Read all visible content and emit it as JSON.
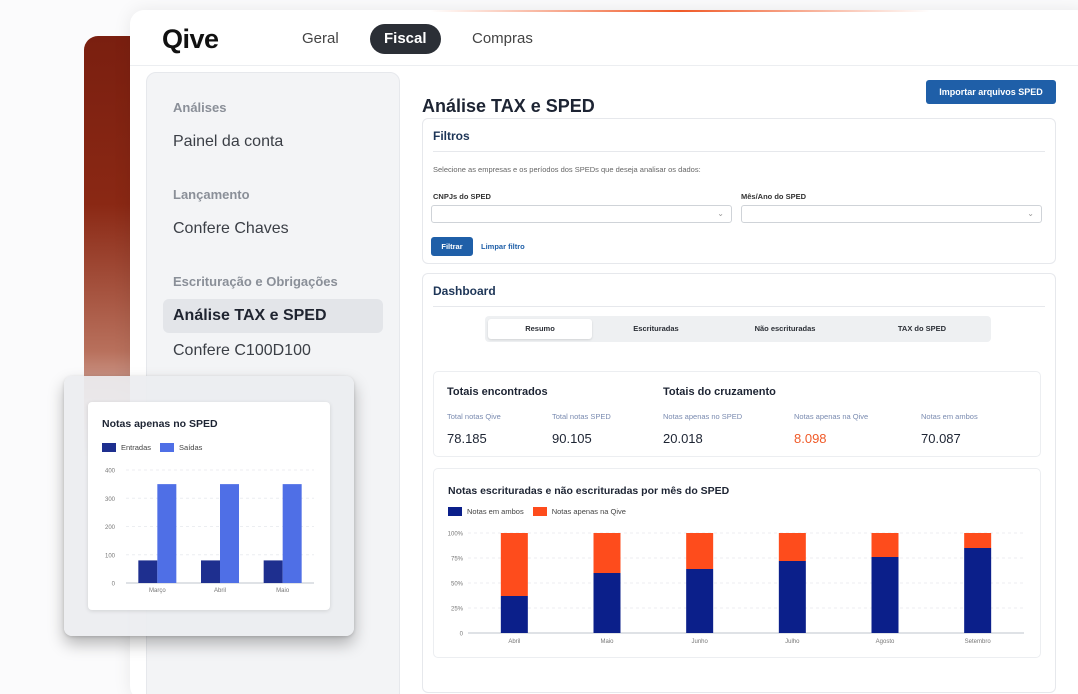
{
  "header": {
    "logo": "Qive",
    "tabs": [
      {
        "label": "Geral",
        "active": false
      },
      {
        "label": "Fiscal",
        "active": true
      },
      {
        "label": "Compras",
        "active": false
      }
    ]
  },
  "sidebar": {
    "sections": [
      {
        "title": "Análises",
        "items": [
          "Painel da conta"
        ]
      },
      {
        "title": "Lançamento",
        "items": [
          "Confere Chaves"
        ]
      },
      {
        "title": "Escrituração e Obrigações",
        "items": [
          "Análise TAX e SPED",
          "Confere C100D100"
        ]
      }
    ],
    "active_item": "Análise TAX e SPED"
  },
  "main": {
    "title": "Análise TAX e SPED",
    "import_button": "Importar arquivos SPED",
    "filters": {
      "title": "Filtros",
      "hint": "Selecione as empresas e os períodos dos SPEDs que deseja analisar os dados:",
      "cnpj_label": "CNPJs do SPED",
      "cnpj_value": "",
      "period_label": "Mês/Ano do SPED",
      "period_value": "",
      "filter_button": "Filtrar",
      "clear_button": "Limpar filtro"
    },
    "dashboard": {
      "title": "Dashboard",
      "tabs": [
        {
          "label": "Resumo",
          "active": true
        },
        {
          "label": "Escrituradas",
          "active": false
        },
        {
          "label": "Não escrituradas",
          "active": false
        },
        {
          "label": "TAX do SPED",
          "active": false
        }
      ],
      "totals": {
        "found_title": "Totais encontrados",
        "cross_title": "Totais do cruzamento",
        "metrics": [
          {
            "label": "Total notas Qive",
            "value": "78.185"
          },
          {
            "label": "Total notas SPED",
            "value": "90.105"
          },
          {
            "label": "Notas apenas no SPED",
            "value": "20.018"
          },
          {
            "label": "Notas apenas na Qive",
            "value": "8.098"
          },
          {
            "label": "Notas em ambos",
            "value": "70.087"
          }
        ],
        "warn_color": "#f05a28"
      }
    }
  },
  "chart_data": [
    {
      "type": "bar",
      "stacked": true,
      "title": "Notas escrituradas e não escrituradas por mês do SPED",
      "categories": [
        "Abril",
        "Maio",
        "Junho",
        "Julho",
        "Agosto",
        "Setembro"
      ],
      "series": [
        {
          "name": "Notas em ambos",
          "color": "#0b1f8a",
          "values": [
            37,
            60,
            64,
            72,
            76,
            85
          ]
        },
        {
          "name": "Notas apenas na Qive",
          "color": "#fe4c1c",
          "values": [
            63,
            40,
            36,
            28,
            24,
            15
          ]
        }
      ],
      "ylim": [
        0,
        100
      ],
      "yticks": [
        "0",
        "25%",
        "50%",
        "75%",
        "100%"
      ],
      "grid": true,
      "legend": "top-left"
    },
    {
      "type": "bar",
      "title": "Notas apenas no SPED",
      "categories": [
        "Março",
        "Abril",
        "Maio"
      ],
      "series": [
        {
          "name": "Entradas",
          "color": "#1e2f8f",
          "values": [
            80,
            80,
            80
          ]
        },
        {
          "name": "Saídas",
          "color": "#4f6fe6",
          "values": [
            350,
            350,
            350
          ]
        }
      ],
      "ylim": [
        0,
        400
      ],
      "yticks": [
        "0",
        "100",
        "200",
        "300",
        "400"
      ],
      "grid": true,
      "legend": "top-left"
    }
  ]
}
